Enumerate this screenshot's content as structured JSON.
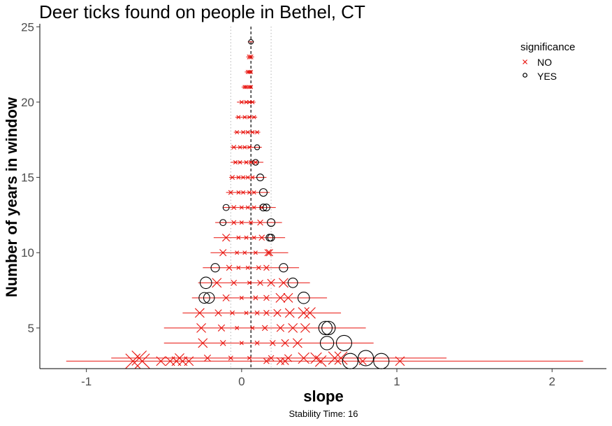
{
  "chart_data": {
    "type": "scatter",
    "title": "Deer ticks found on people in Bethel, CT",
    "xlabel": "slope",
    "ylabel": "Number of years in window",
    "caption": "Stability Time: 16",
    "xlim": [
      -1.3,
      2.35
    ],
    "ylim": [
      2.3,
      25.2
    ],
    "x_ticks": [
      -1,
      0,
      1,
      2
    ],
    "x_tick_labels": [
      "-1",
      "0",
      "1",
      "2"
    ],
    "y_ticks": [
      5,
      10,
      15,
      20,
      25
    ],
    "y_tick_labels": [
      "5",
      "10",
      "15",
      "20",
      "25"
    ],
    "grid": false,
    "reference_lines": {
      "dashed": 0.06,
      "dotted": [
        -0.07,
        0.19
      ]
    },
    "legend": {
      "title": "significance",
      "position": "top-right",
      "entries": [
        {
          "label": "NO",
          "marker": "x",
          "color": "#e8120c"
        },
        {
          "label": "YES",
          "marker": "circle",
          "color": "#000000"
        }
      ]
    },
    "colors": {
      "NO": "#e8120c",
      "YES": "#000000"
    },
    "rows": [
      {
        "y": 24,
        "min": 0.04,
        "max": 0.08,
        "points": [
          {
            "x": 0.06,
            "s": "YES",
            "r": 1.2
          }
        ]
      },
      {
        "y": 23,
        "min": 0.03,
        "max": 0.08,
        "points": [
          {
            "x": 0.05,
            "s": "NO",
            "r": 1.2
          },
          {
            "x": 0.06,
            "s": "NO",
            "r": 1.2
          }
        ]
      },
      {
        "y": 22,
        "min": 0.02,
        "max": 0.07,
        "points": [
          {
            "x": 0.04,
            "s": "NO",
            "r": 1
          },
          {
            "x": 0.05,
            "s": "NO",
            "r": 1
          },
          {
            "x": 0.06,
            "s": "NO",
            "r": 1
          }
        ]
      },
      {
        "y": 21,
        "min": 0.0,
        "max": 0.07,
        "points": [
          {
            "x": 0.02,
            "s": "NO",
            "r": 1
          },
          {
            "x": 0.03,
            "s": "NO",
            "r": 1
          },
          {
            "x": 0.05,
            "s": "NO",
            "r": 1
          },
          {
            "x": 0.06,
            "s": "NO",
            "r": 1
          }
        ]
      },
      {
        "y": 20,
        "min": -0.03,
        "max": 0.09,
        "points": [
          {
            "x": 0.0,
            "s": "NO",
            "r": 1
          },
          {
            "x": 0.03,
            "s": "NO",
            "r": 1
          },
          {
            "x": 0.05,
            "s": "NO",
            "r": 1
          },
          {
            "x": 0.07,
            "s": "NO",
            "r": 1
          }
        ]
      },
      {
        "y": 19,
        "min": -0.04,
        "max": 0.1,
        "points": [
          {
            "x": -0.02,
            "s": "NO",
            "r": 1
          },
          {
            "x": 0.02,
            "s": "NO",
            "r": 1
          },
          {
            "x": 0.05,
            "s": "NO",
            "r": 1
          },
          {
            "x": 0.08,
            "s": "NO",
            "r": 1
          }
        ]
      },
      {
        "y": 18,
        "min": -0.05,
        "max": 0.12,
        "points": [
          {
            "x": -0.03,
            "s": "NO",
            "r": 1
          },
          {
            "x": 0.01,
            "s": "NO",
            "r": 1
          },
          {
            "x": 0.04,
            "s": "NO",
            "r": 1
          },
          {
            "x": 0.07,
            "s": "NO",
            "r": 1
          },
          {
            "x": 0.1,
            "s": "NO",
            "r": 1
          }
        ]
      },
      {
        "y": 17,
        "min": -0.07,
        "max": 0.13,
        "points": [
          {
            "x": -0.05,
            "s": "NO",
            "r": 1.2
          },
          {
            "x": -0.01,
            "s": "NO",
            "r": 1
          },
          {
            "x": 0.02,
            "s": "NO",
            "r": 1
          },
          {
            "x": 0.05,
            "s": "NO",
            "r": 1
          },
          {
            "x": 0.1,
            "s": "YES",
            "r": 1.3
          }
        ]
      },
      {
        "y": 16,
        "min": -0.07,
        "max": 0.14,
        "points": [
          {
            "x": -0.04,
            "s": "NO",
            "r": 1
          },
          {
            "x": -0.01,
            "s": "NO",
            "r": 1
          },
          {
            "x": 0.03,
            "s": "NO",
            "r": 1
          },
          {
            "x": 0.06,
            "s": "NO",
            "r": 1
          },
          {
            "x": 0.09,
            "s": "NO",
            "r": 1
          },
          {
            "x": 0.09,
            "s": "YES",
            "r": 1.5
          }
        ]
      },
      {
        "y": 15,
        "min": -0.08,
        "max": 0.16,
        "points": [
          {
            "x": -0.06,
            "s": "NO",
            "r": 1.2
          },
          {
            "x": -0.02,
            "s": "NO",
            "r": 1
          },
          {
            "x": 0.01,
            "s": "NO",
            "r": 1
          },
          {
            "x": 0.04,
            "s": "NO",
            "r": 1
          },
          {
            "x": 0.07,
            "s": "NO",
            "r": 1
          },
          {
            "x": 0.12,
            "s": "YES",
            "r": 1.8
          }
        ]
      },
      {
        "y": 14,
        "min": -0.1,
        "max": 0.18,
        "points": [
          {
            "x": -0.07,
            "s": "NO",
            "r": 1.2
          },
          {
            "x": -0.02,
            "s": "NO",
            "r": 1
          },
          {
            "x": 0.01,
            "s": "NO",
            "r": 1
          },
          {
            "x": 0.05,
            "s": "NO",
            "r": 1
          },
          {
            "x": 0.08,
            "s": "NO",
            "r": 1
          },
          {
            "x": 0.14,
            "s": "YES",
            "r": 2
          }
        ]
      },
      {
        "y": 13,
        "min": -0.12,
        "max": 0.22,
        "points": [
          {
            "x": -0.1,
            "s": "YES",
            "r": 1.6
          },
          {
            "x": -0.05,
            "s": "NO",
            "r": 1.2
          },
          {
            "x": 0.0,
            "s": "NO",
            "r": 1
          },
          {
            "x": 0.04,
            "s": "NO",
            "r": 1
          },
          {
            "x": 0.08,
            "s": "NO",
            "r": 1
          },
          {
            "x": 0.13,
            "s": "NO",
            "r": 1.2
          },
          {
            "x": 0.14,
            "s": "YES",
            "r": 1.8
          },
          {
            "x": 0.16,
            "s": "YES",
            "r": 1.8
          }
        ]
      },
      {
        "y": 12,
        "min": -0.17,
        "max": 0.26,
        "points": [
          {
            "x": -0.12,
            "s": "YES",
            "r": 1.6
          },
          {
            "x": -0.05,
            "s": "NO",
            "r": 1.2
          },
          {
            "x": 0.0,
            "s": "NO",
            "r": 1
          },
          {
            "x": 0.06,
            "s": "NO",
            "r": 1
          },
          {
            "x": 0.12,
            "s": "NO",
            "r": 1.5
          },
          {
            "x": 0.19,
            "s": "YES",
            "r": 2
          }
        ]
      },
      {
        "y": 11,
        "min": -0.18,
        "max": 0.28,
        "points": [
          {
            "x": -0.1,
            "s": "NO",
            "r": 2
          },
          {
            "x": -0.02,
            "s": "NO",
            "r": 1
          },
          {
            "x": 0.03,
            "s": "NO",
            "r": 1
          },
          {
            "x": 0.08,
            "s": "NO",
            "r": 1
          },
          {
            "x": 0.13,
            "s": "NO",
            "r": 1.5
          },
          {
            "x": 0.18,
            "s": "YES",
            "r": 1.8
          },
          {
            "x": 0.19,
            "s": "YES",
            "r": 1.8
          }
        ]
      },
      {
        "y": 10,
        "min": -0.2,
        "max": 0.3,
        "points": [
          {
            "x": -0.12,
            "s": "NO",
            "r": 1.8
          },
          {
            "x": -0.03,
            "s": "NO",
            "r": 1
          },
          {
            "x": 0.02,
            "s": "NO",
            "r": 1
          },
          {
            "x": 0.09,
            "s": "NO",
            "r": 1
          },
          {
            "x": 0.17,
            "s": "NO",
            "r": 1.8
          },
          {
            "x": 0.18,
            "s": "NO",
            "r": 1.8
          }
        ]
      },
      {
        "y": 9,
        "min": -0.25,
        "max": 0.37,
        "points": [
          {
            "x": -0.17,
            "s": "YES",
            "r": 2.2
          },
          {
            "x": -0.08,
            "s": "NO",
            "r": 1.5
          },
          {
            "x": -0.02,
            "s": "NO",
            "r": 1
          },
          {
            "x": 0.04,
            "s": "NO",
            "r": 1
          },
          {
            "x": 0.11,
            "s": "NO",
            "r": 1.2
          },
          {
            "x": 0.16,
            "s": "NO",
            "r": 1.5
          },
          {
            "x": 0.27,
            "s": "YES",
            "r": 2.2
          }
        ]
      },
      {
        "y": 8,
        "min": -0.28,
        "max": 0.44,
        "points": [
          {
            "x": -0.23,
            "s": "YES",
            "r": 3
          },
          {
            "x": -0.16,
            "s": "NO",
            "r": 2.5
          },
          {
            "x": -0.05,
            "s": "NO",
            "r": 1.5
          },
          {
            "x": 0.05,
            "s": "NO",
            "r": 1
          },
          {
            "x": 0.12,
            "s": "NO",
            "r": 1.5
          },
          {
            "x": 0.19,
            "s": "NO",
            "r": 2
          },
          {
            "x": 0.27,
            "s": "NO",
            "r": 2.5
          },
          {
            "x": 0.33,
            "s": "YES",
            "r": 2.5
          }
        ]
      },
      {
        "y": 7,
        "min": -0.32,
        "max": 0.55,
        "points": [
          {
            "x": -0.24,
            "s": "YES",
            "r": 2.8
          },
          {
            "x": -0.21,
            "s": "YES",
            "r": 2.8
          },
          {
            "x": -0.1,
            "s": "NO",
            "r": 1.8
          },
          {
            "x": 0.0,
            "s": "NO",
            "r": 1
          },
          {
            "x": 0.09,
            "s": "NO",
            "r": 1.2
          },
          {
            "x": 0.16,
            "s": "NO",
            "r": 1.5
          },
          {
            "x": 0.25,
            "s": "NO",
            "r": 2.5
          },
          {
            "x": 0.3,
            "s": "NO",
            "r": 2.5
          },
          {
            "x": 0.4,
            "s": "YES",
            "r": 3
          }
        ]
      },
      {
        "y": 6,
        "min": -0.38,
        "max": 0.64,
        "points": [
          {
            "x": -0.27,
            "s": "NO",
            "r": 2.5
          },
          {
            "x": -0.15,
            "s": "NO",
            "r": 1.8
          },
          {
            "x": -0.06,
            "s": "NO",
            "r": 1.2
          },
          {
            "x": 0.03,
            "s": "NO",
            "r": 1
          },
          {
            "x": 0.1,
            "s": "NO",
            "r": 1.2
          },
          {
            "x": 0.16,
            "s": "NO",
            "r": 1.5
          },
          {
            "x": 0.23,
            "s": "NO",
            "r": 2
          },
          {
            "x": 0.31,
            "s": "NO",
            "r": 2.5
          },
          {
            "x": 0.4,
            "s": "NO",
            "r": 3
          },
          {
            "x": 0.44,
            "s": "NO",
            "r": 3
          }
        ]
      },
      {
        "y": 5,
        "min": -0.5,
        "max": 0.8,
        "points": [
          {
            "x": -0.26,
            "s": "NO",
            "r": 2.5
          },
          {
            "x": -0.13,
            "s": "NO",
            "r": 1.8
          },
          {
            "x": -0.03,
            "s": "NO",
            "r": 1
          },
          {
            "x": 0.07,
            "s": "NO",
            "r": 1
          },
          {
            "x": 0.15,
            "s": "NO",
            "r": 1.5
          },
          {
            "x": 0.25,
            "s": "NO",
            "r": 2
          },
          {
            "x": 0.33,
            "s": "NO",
            "r": 2.5
          },
          {
            "x": 0.41,
            "s": "NO",
            "r": 2.5
          },
          {
            "x": 0.54,
            "s": "YES",
            "r": 3.5
          },
          {
            "x": 0.56,
            "s": "YES",
            "r": 3.5
          }
        ]
      },
      {
        "y": 4,
        "min": -0.5,
        "max": 0.85,
        "points": [
          {
            "x": -0.25,
            "s": "NO",
            "r": 2.5
          },
          {
            "x": -0.12,
            "s": "NO",
            "r": 1.5
          },
          {
            "x": 0.0,
            "s": "NO",
            "r": 1
          },
          {
            "x": 0.1,
            "s": "NO",
            "r": 1.2
          },
          {
            "x": 0.2,
            "s": "NO",
            "r": 1.5
          },
          {
            "x": 0.28,
            "s": "NO",
            "r": 2
          },
          {
            "x": 0.36,
            "s": "NO",
            "r": 2.5
          },
          {
            "x": 0.55,
            "s": "YES",
            "r": 3.5
          },
          {
            "x": 0.66,
            "s": "YES",
            "r": 4
          }
        ]
      },
      {
        "y": 3,
        "min": -0.84,
        "max": 1.32,
        "points": [
          {
            "x": -0.66,
            "s": "NO",
            "r": 4
          },
          {
            "x": -0.4,
            "s": "NO",
            "r": 2.5
          },
          {
            "x": -0.22,
            "s": "NO",
            "r": 1.8
          },
          {
            "x": -0.07,
            "s": "NO",
            "r": 1.2
          },
          {
            "x": 0.05,
            "s": "NO",
            "r": 1
          },
          {
            "x": 0.19,
            "s": "NO",
            "r": 1.5
          },
          {
            "x": 0.3,
            "s": "NO",
            "r": 2
          },
          {
            "x": 0.4,
            "s": "NO",
            "r": 3
          },
          {
            "x": 0.48,
            "s": "NO",
            "r": 3
          },
          {
            "x": 0.6,
            "s": "NO",
            "r": 3.5
          },
          {
            "x": 0.64,
            "s": "NO",
            "r": 3.5
          },
          {
            "x": 0.8,
            "s": "YES",
            "r": 4
          }
        ]
      },
      {
        "y": 2.8,
        "min": -1.13,
        "max": 2.2,
        "points": [
          {
            "x": -0.7,
            "s": "NO",
            "r": 4
          },
          {
            "x": -0.64,
            "s": "NO",
            "r": 4
          },
          {
            "x": -0.52,
            "s": "NO",
            "r": 2.5
          },
          {
            "x": -0.46,
            "s": "NO",
            "r": 2.5
          },
          {
            "x": -0.42,
            "s": "NO",
            "r": 2.5
          },
          {
            "x": -0.38,
            "s": "NO",
            "r": 2.5
          },
          {
            "x": -0.34,
            "s": "NO",
            "r": 2.5
          },
          {
            "x": 0.16,
            "s": "NO",
            "r": 1.5
          },
          {
            "x": 0.25,
            "s": "NO",
            "r": 2
          },
          {
            "x": 0.28,
            "s": "NO",
            "r": 2
          },
          {
            "x": 0.51,
            "s": "NO",
            "r": 3
          },
          {
            "x": 0.7,
            "s": "YES",
            "r": 4
          },
          {
            "x": 0.78,
            "s": "NO",
            "r": 2
          },
          {
            "x": 0.9,
            "s": "YES",
            "r": 4
          },
          {
            "x": 1.02,
            "s": "NO",
            "r": 2.5
          }
        ]
      }
    ]
  }
}
